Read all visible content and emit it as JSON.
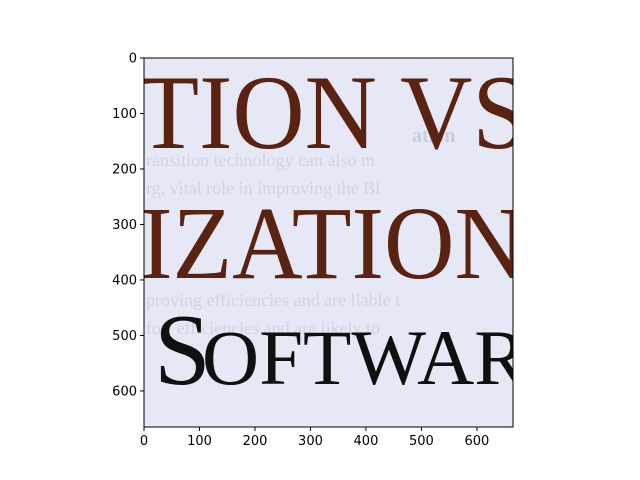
{
  "axes": {
    "x_ticks": [
      "0",
      "100",
      "200",
      "300",
      "400",
      "500",
      "600"
    ],
    "x_tick_values": [
      0,
      100,
      200,
      300,
      400,
      500,
      600
    ],
    "y_ticks": [
      "0",
      "100",
      "200",
      "300",
      "400",
      "500",
      "600"
    ],
    "y_tick_values": [
      0,
      100,
      200,
      300,
      400,
      500,
      600
    ],
    "xlim": [
      0,
      665
    ],
    "ylim": [
      665,
      0
    ]
  },
  "image": {
    "line1": "TION VS",
    "line2": "IZATION",
    "line3_big": "S",
    "line3_rest": "OFTWAR",
    "faint_1": "ation",
    "faint_2": "ransition technology can also m",
    "faint_3": "rg. vital role in improving the Bl",
    "faint_4": "proving efficiencies and are liable t",
    "faint_5": "fort efficiencies and are likely to",
    "colors": {
      "paper": "#e6e9f5",
      "red_text": "#5a2210",
      "black_text": "#0d1210",
      "faint_text": "#c7cde0"
    }
  }
}
